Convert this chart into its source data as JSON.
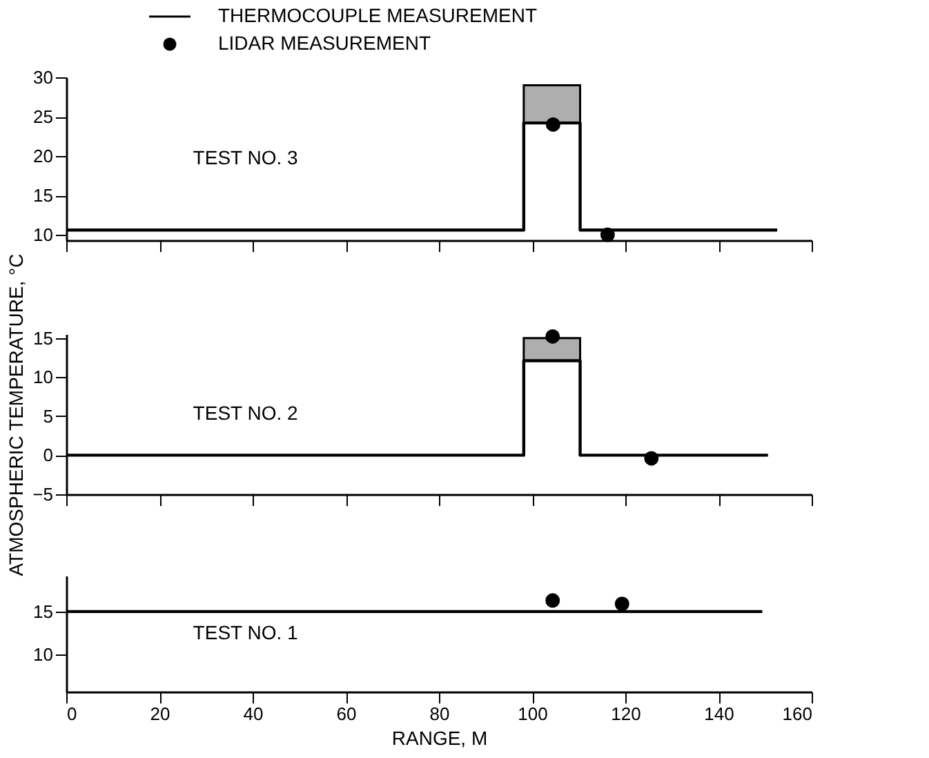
{
  "chart_data": [
    {
      "type": "line",
      "legend": "top left",
      "tick_labels": "y",
      "xlim": [
        0,
        160
      ],
      "xticks": [
        0,
        20,
        40,
        60,
        80,
        100,
        120,
        140,
        160
      ],
      "ylim": [
        9.3,
        30
      ],
      "yticks": [
        10,
        15,
        20,
        25,
        30
      ],
      "annotations": [
        "TEST NO. 3"
      ],
      "series": [
        {
          "name": "THERMOCOUPLE MEASUREMENT",
          "color": "#000000",
          "x": [
            0,
            98.2,
            98.2,
            110.3,
            110.3,
            152.6
          ],
          "values": [
            10.6,
            10.6,
            24.2,
            24.2,
            10.6,
            10.6
          ],
          "lower": [
            10.6,
            10.6,
            24.2,
            24.2,
            10.6,
            10.6
          ],
          "upper": [
            10.6,
            10.6,
            29,
            29,
            10.6,
            10.6
          ]
        },
        {
          "name": "LIDAR MEASUREMENT",
          "type": "scatter",
          "color": "#000000",
          "marker": "circle",
          "x": [
            104.5,
            116.2
          ],
          "values": [
            24,
            10
          ]
        }
      ]
    },
    {
      "type": "line",
      "ylabel": "ATMOSPHERIC TEMPERATURE, °C",
      "tick_labels": "y",
      "xlim": [
        0,
        160
      ],
      "xticks": [
        0,
        20,
        40,
        60,
        80,
        100,
        120,
        140,
        160
      ],
      "ylim": [
        -5,
        15.5
      ],
      "yticks": [
        -5,
        0,
        5,
        10,
        15
      ],
      "annotations": [
        "TEST NO. 2"
      ],
      "series": [
        {
          "color": "#000000",
          "x": [
            0,
            98.2,
            98.2,
            110.3,
            110.3,
            150.6
          ],
          "values": [
            0,
            0,
            12.1,
            12.1,
            0,
            0
          ],
          "lower": [
            0,
            0,
            12.1,
            12.1,
            0,
            0
          ],
          "upper": [
            0,
            0,
            15,
            15,
            0,
            0
          ]
        },
        {
          "type": "scatter",
          "color": "#000000",
          "marker": "circle",
          "x": [
            104.4,
            125.6
          ],
          "values": [
            15.2,
            -0.4
          ]
        }
      ]
    },
    {
      "type": "line",
      "xlabel": "RANGE, M",
      "xlim": [
        0,
        160
      ],
      "xticks": [
        0,
        20,
        40,
        60,
        80,
        100,
        120,
        140,
        160
      ],
      "ylim": [
        5.6,
        19.2
      ],
      "yticks": [
        10,
        15
      ],
      "annotations": [
        "TEST NO. 1"
      ],
      "series": [
        {
          "color": "#000000",
          "x": [
            0,
            149.4
          ],
          "values": [
            15,
            15
          ]
        },
        {
          "type": "scatter",
          "color": "#000000",
          "marker": "circle",
          "x": [
            104.4,
            119.3
          ],
          "values": [
            16.3,
            15.9
          ]
        }
      ]
    }
  ]
}
